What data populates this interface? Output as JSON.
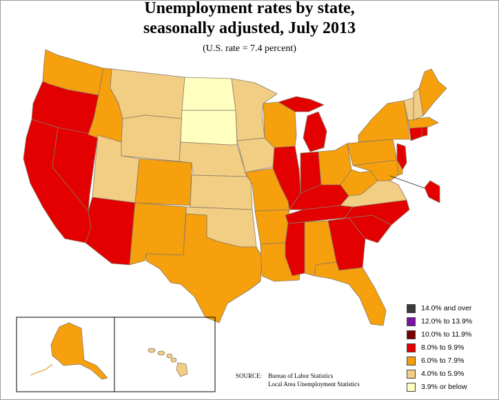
{
  "title": {
    "line1": "Unemployment rates by state,",
    "line2": "seasonally adjusted, July 2013",
    "subtitle": "(U.S. rate = 7.4 percent)"
  },
  "legend": [
    {
      "label": "14.0% and over",
      "color": "#3a3a3a"
    },
    {
      "label": "12.0% to 13.9%",
      "color": "#7b12a8"
    },
    {
      "label": "10.0% to 11.9%",
      "color": "#7a0000"
    },
    {
      "label": "8.0% to 9.9%",
      "color": "#e20000"
    },
    {
      "label": "6.0% to 7.9%",
      "color": "#f5a00c"
    },
    {
      "label": "4.0% to 5.9%",
      "color": "#f2cd84"
    },
    {
      "label": "3.9% or below",
      "color": "#ffffc0"
    }
  ],
  "source": {
    "label": "SOURCE:",
    "line1": "Bureau of Labor Statistics",
    "line2": "Local Area Unemployment Statistics"
  },
  "map": {
    "borderColor": "#8a7a66",
    "regions": [
      {
        "name": "region-west-coast",
        "bin": "8.0% to 9.9%"
      },
      {
        "name": "region-mountain",
        "bin": "4.0% to 5.9%"
      },
      {
        "name": "region-plains-north",
        "bin": "3.9% or below"
      },
      {
        "name": "region-central",
        "bin": "4.0% to 5.9%"
      },
      {
        "name": "region-midwest-east",
        "bin": "8.0% to 9.9%"
      },
      {
        "name": "region-south",
        "bin": "6.0% to 7.9%"
      },
      {
        "name": "region-southeast",
        "bin": "8.0% to 9.9%"
      },
      {
        "name": "region-northeast",
        "bin": "6.0% to 7.9%"
      }
    ]
  }
}
